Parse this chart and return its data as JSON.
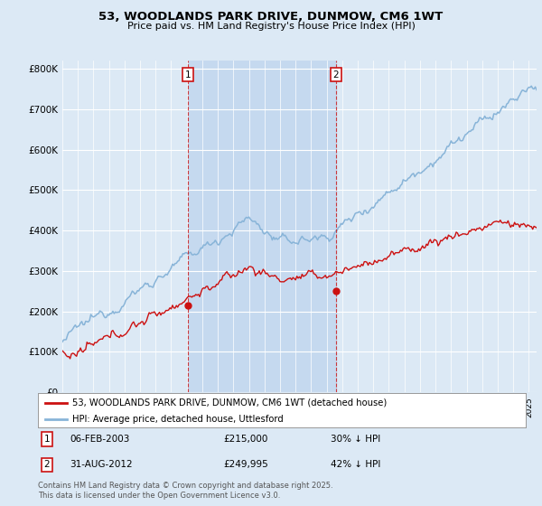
{
  "title": "53, WOODLANDS PARK DRIVE, DUNMOW, CM6 1WT",
  "subtitle": "Price paid vs. HM Land Registry's House Price Index (HPI)",
  "background_color": "#dce9f5",
  "plot_bg_color": "#dce9f5",
  "ytick_labels": [
    "£0",
    "£100K",
    "£200K",
    "£300K",
    "£400K",
    "£500K",
    "£600K",
    "£700K",
    "£800K"
  ],
  "yticks": [
    0,
    100000,
    200000,
    300000,
    400000,
    500000,
    600000,
    700000,
    800000
  ],
  "hpi_color": "#88b4d8",
  "price_color": "#cc1111",
  "shade_color": "#c5d9ef",
  "legend_line1": "53, WOODLANDS PARK DRIVE, DUNMOW, CM6 1WT (detached house)",
  "legend_line2": "HPI: Average price, detached house, Uttlesford",
  "footer": "Contains HM Land Registry data © Crown copyright and database right 2025.\nThis data is licensed under the Open Government Licence v3.0.",
  "sale1_year": 2003.083,
  "sale1_price": 215000,
  "sale2_year": 2012.583,
  "sale2_price": 249995,
  "x_start_year": 1995,
  "x_end_year": 2025.5,
  "ylim_max": 820000,
  "annotation_box_color": "#cc1111"
}
